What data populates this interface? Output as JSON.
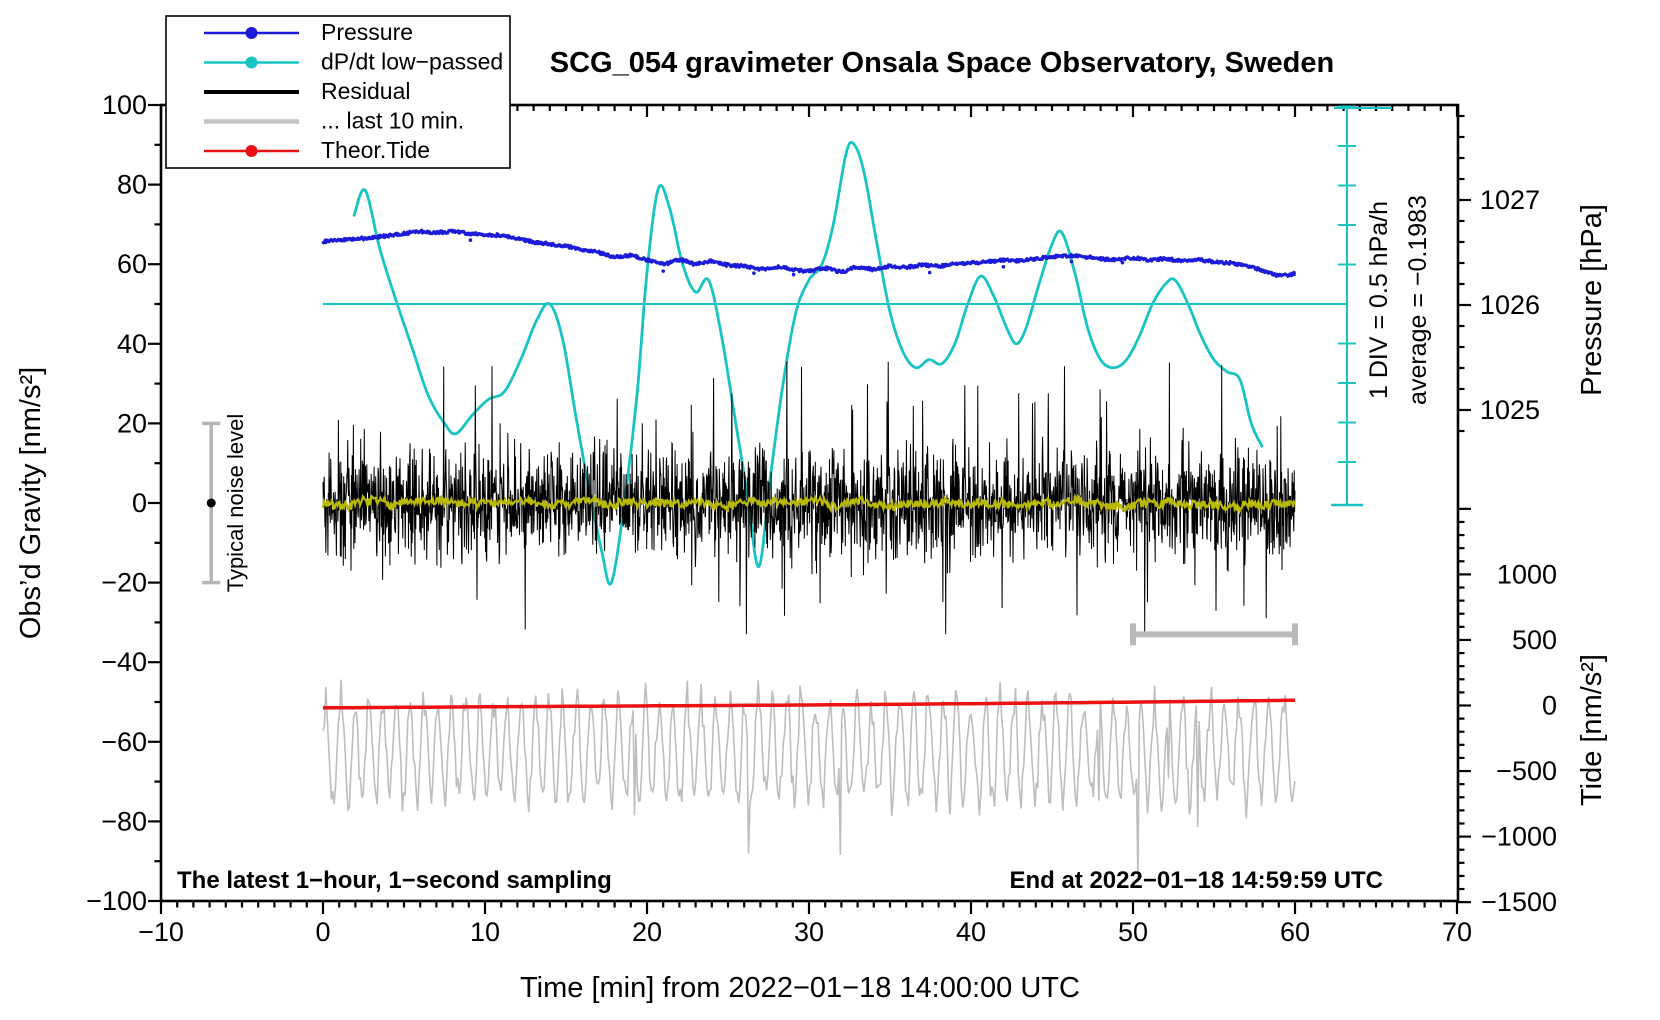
{
  "title": "SCG_054 gravimeter Onsala Space Observatory, Sweden",
  "legend": {
    "items": [
      {
        "label": "Pressure",
        "color": "#1b1bd9",
        "marker": true,
        "line_width": 2.5
      },
      {
        "label": "dP/dt low−passed",
        "color": "#17c3c3",
        "marker": true,
        "line_width": 2.5
      },
      {
        "label": "Residual",
        "color": "#000000",
        "marker": false,
        "line_width": 4
      },
      {
        "label": "... last 10 min.",
        "color": "#c3c3c3",
        "marker": false,
        "line_width": 4.5
      },
      {
        "label": "Theor.Tide",
        "color": "#ea1212",
        "marker": true,
        "line_width": 2.5
      }
    ]
  },
  "axes": {
    "left": {
      "label": "Obs’d Gravity [nm/s²]",
      "range": [
        -100,
        100
      ],
      "major_ticks": [
        100,
        80,
        60,
        40,
        20,
        0,
        -20,
        -40,
        -60,
        -80,
        -100
      ],
      "minor_step": 10
    },
    "bottom": {
      "label": "Time [min] from 2022−01−18 14:00:00 UTC",
      "range": [
        -10,
        70
      ],
      "major_ticks": [
        -10,
        0,
        10,
        20,
        30,
        40,
        50,
        60,
        70
      ],
      "minor_step": 1
    },
    "right_pressure": {
      "label": "Pressure [hPa]",
      "major_ticks": [
        1027,
        1026,
        1025
      ],
      "minor_step": 0.2
    },
    "right_tide": {
      "label": "Tide [nm/s²]",
      "major_ticks": [
        1000,
        500,
        0,
        -500,
        -1000,
        -1500
      ],
      "minor_step": 100
    }
  },
  "annotations": {
    "div_scale": "1 DIV = 0.5 hPa/h",
    "average": "average = −0.1983",
    "noise_level": "Typical noise level",
    "sampling_note": "The latest 1−hour, 1−second sampling",
    "end_time": "End at 2022−01−18 14:59:59 UTC"
  },
  "chart_data": {
    "type": "line",
    "x_unit": "minutes from 2022-01-18 14:00:00 UTC",
    "x_range": [
      -10,
      70
    ],
    "gravity_axis_range": [
      -100,
      100
    ],
    "pressure_axis_ticks_hPa": [
      1027,
      1026,
      1025
    ],
    "tide_axis_range": [
      -1500,
      1000
    ],
    "pressure_average_hPa_per_h": -0.1983,
    "dpdt_scale_note": "1 DIV = 0.5 hPa/h",
    "noise_marker": {
      "label": "Typical noise level",
      "center_gravity": 0,
      "error": 20,
      "t_min": -6.9
    },
    "window_bracket": {
      "from_min": 50,
      "to_min": 60,
      "gravity_level": -33
    },
    "series": [
      {
        "name": "Pressure",
        "unit": "hPa",
        "color": "#1b1bd9",
        "points": [
          [
            0,
            1026.6
          ],
          [
            1,
            1026.62
          ],
          [
            2,
            1026.63
          ],
          [
            3,
            1026.64
          ],
          [
            4,
            1026.66
          ],
          [
            5,
            1026.68
          ],
          [
            6,
            1026.7
          ],
          [
            7,
            1026.69
          ],
          [
            8,
            1026.7
          ],
          [
            9,
            1026.68
          ],
          [
            10,
            1026.67
          ],
          [
            11,
            1026.66
          ],
          [
            12,
            1026.63
          ],
          [
            13,
            1026.6
          ],
          [
            14,
            1026.58
          ],
          [
            15,
            1026.56
          ],
          [
            16,
            1026.53
          ],
          [
            17,
            1026.5
          ],
          [
            18,
            1026.46
          ],
          [
            19,
            1026.47
          ],
          [
            20,
            1026.43
          ],
          [
            21,
            1026.39
          ],
          [
            22,
            1026.43
          ],
          [
            23,
            1026.39
          ],
          [
            24,
            1026.42
          ],
          [
            25,
            1026.38
          ],
          [
            26,
            1026.37
          ],
          [
            27,
            1026.34
          ],
          [
            28,
            1026.36
          ],
          [
            29,
            1026.34
          ],
          [
            30,
            1026.32
          ],
          [
            31,
            1026.35
          ],
          [
            32,
            1026.32
          ],
          [
            33,
            1026.36
          ],
          [
            34,
            1026.34
          ],
          [
            35,
            1026.37
          ],
          [
            36,
            1026.36
          ],
          [
            37,
            1026.38
          ],
          [
            38,
            1026.37
          ],
          [
            39,
            1026.39
          ],
          [
            40,
            1026.4
          ],
          [
            41,
            1026.41
          ],
          [
            42,
            1026.43
          ],
          [
            43,
            1026.42
          ],
          [
            44,
            1026.44
          ],
          [
            45,
            1026.46
          ],
          [
            46,
            1026.47
          ],
          [
            47,
            1026.46
          ],
          [
            48,
            1026.44
          ],
          [
            49,
            1026.43
          ],
          [
            50,
            1026.45
          ],
          [
            51,
            1026.43
          ],
          [
            52,
            1026.44
          ],
          [
            53,
            1026.42
          ],
          [
            54,
            1026.43
          ],
          [
            55,
            1026.41
          ],
          [
            56,
            1026.4
          ],
          [
            57,
            1026.37
          ],
          [
            58,
            1026.33
          ],
          [
            59,
            1026.28
          ],
          [
            60,
            1026.3
          ]
        ]
      },
      {
        "name": "dP/dt low−passed",
        "unit": "hPa/h",
        "color": "#17c3c3",
        "zero_level_gravity": 50,
        "units_per_hPa_per_h": 20,
        "points": [
          [
            1.9,
            1.1
          ],
          [
            2.6,
            1.43
          ],
          [
            3.5,
            0.7
          ],
          [
            4.5,
            0.05
          ],
          [
            5.5,
            -0.55
          ],
          [
            6.5,
            -1.15
          ],
          [
            7.5,
            -1.5
          ],
          [
            8.2,
            -1.63
          ],
          [
            9.2,
            -1.4
          ],
          [
            10.2,
            -1.2
          ],
          [
            11.2,
            -1.1
          ],
          [
            12.2,
            -0.7
          ],
          [
            13.2,
            -0.2
          ],
          [
            14.0,
            0.0
          ],
          [
            14.8,
            -0.45
          ],
          [
            15.6,
            -1.4
          ],
          [
            16.4,
            -2.3
          ],
          [
            17.2,
            -3.1
          ],
          [
            17.8,
            -3.5
          ],
          [
            18.6,
            -2.5
          ],
          [
            19.4,
            -1.1
          ],
          [
            20.0,
            0.4
          ],
          [
            20.7,
            1.45
          ],
          [
            21.4,
            1.2
          ],
          [
            22.2,
            0.5
          ],
          [
            23.0,
            0.15
          ],
          [
            23.8,
            0.3
          ],
          [
            24.6,
            -0.4
          ],
          [
            25.4,
            -1.4
          ],
          [
            26.2,
            -2.4
          ],
          [
            26.9,
            -3.3
          ],
          [
            27.6,
            -2.2
          ],
          [
            28.4,
            -1.0
          ],
          [
            29.2,
            -0.1
          ],
          [
            30.0,
            0.3
          ],
          [
            30.8,
            0.5
          ],
          [
            31.5,
            1.0
          ],
          [
            32.3,
            1.9
          ],
          [
            32.8,
            2.0
          ],
          [
            33.4,
            1.65
          ],
          [
            34.2,
            0.75
          ],
          [
            35.0,
            -0.1
          ],
          [
            35.8,
            -0.6
          ],
          [
            36.6,
            -0.8
          ],
          [
            37.4,
            -0.7
          ],
          [
            38.2,
            -0.75
          ],
          [
            39.0,
            -0.5
          ],
          [
            39.8,
            0.0
          ],
          [
            40.6,
            0.35
          ],
          [
            41.4,
            0.1
          ],
          [
            42.2,
            -0.3
          ],
          [
            42.8,
            -0.5
          ],
          [
            43.4,
            -0.3
          ],
          [
            44.2,
            0.25
          ],
          [
            45.0,
            0.75
          ],
          [
            45.6,
            0.9
          ],
          [
            46.4,
            0.4
          ],
          [
            47.2,
            -0.3
          ],
          [
            48.0,
            -0.7
          ],
          [
            48.8,
            -0.8
          ],
          [
            49.6,
            -0.7
          ],
          [
            50.4,
            -0.4
          ],
          [
            51.2,
            0.0
          ],
          [
            52.0,
            0.25
          ],
          [
            52.6,
            0.3
          ],
          [
            53.4,
            0.0
          ],
          [
            54.2,
            -0.4
          ],
          [
            55.0,
            -0.7
          ],
          [
            55.8,
            -0.85
          ],
          [
            56.6,
            -0.95
          ],
          [
            57.3,
            -1.5
          ],
          [
            58.0,
            -1.8
          ]
        ]
      },
      {
        "name": "Residual",
        "unit": "nm/s²",
        "color": "#000000",
        "noise": {
          "mean": 0,
          "sigma": 6.5,
          "clip": [
            -33,
            36
          ],
          "seed": 42,
          "n": 2400
        }
      },
      {
        "name": "Residual low−passed",
        "unit": "nm/s²",
        "color": "#b9b900",
        "noise": {
          "mean": 0,
          "sigma": 1.3,
          "seed": 7,
          "n": 1000
        }
      },
      {
        "name": "... last 10 min.",
        "unit": "nm/s²",
        "color": "#bdbdbd",
        "noise": {
          "center": -62,
          "amp": 14,
          "clip": [
            -96,
            -33
          ],
          "seed": 13,
          "n": 700
        }
      },
      {
        "name": "Theor.Tide",
        "unit": "nm/s² (tide axis)",
        "color": "#ea1212",
        "points": [
          [
            0,
            -18
          ],
          [
            10,
            -10
          ],
          [
            20,
            -3
          ],
          [
            30,
            4
          ],
          [
            40,
            14
          ],
          [
            50,
            26
          ],
          [
            60,
            40
          ]
        ]
      }
    ]
  }
}
